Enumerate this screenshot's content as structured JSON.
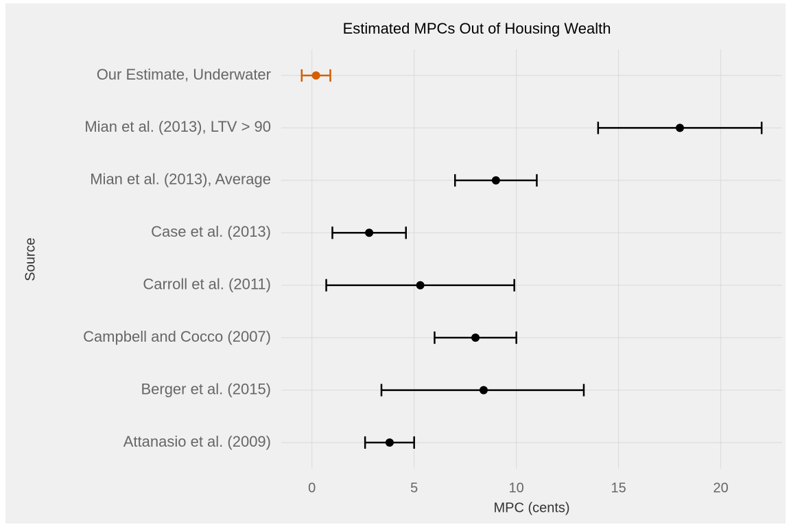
{
  "chart_data": {
    "type": "errorbar",
    "title": "Estimated MPCs Out of Housing Wealth",
    "x_label": "MPC (cents)",
    "y_label": "Source",
    "categories": [
      "Our Estimate, Underwater",
      "Mian et al. (2013), LTV > 90",
      "Mian et al. (2013), Average",
      "Case et al. (2013)",
      "Carroll et al. (2011)",
      "Campbell and Cocco (2007)",
      "Berger et al. (2015)",
      "Attanasio et al. (2009)"
    ],
    "values": [
      0.2,
      18.0,
      9.0,
      2.8,
      5.3,
      8.0,
      8.4,
      3.8
    ],
    "lower": [
      -0.5,
      14.0,
      7.0,
      1.0,
      0.7,
      6.0,
      3.4,
      2.6
    ],
    "upper": [
      0.9,
      22.0,
      11.0,
      4.6,
      9.9,
      10.0,
      13.3,
      5.0
    ],
    "colors": [
      "#d55e00",
      "#000000",
      "#000000",
      "#000000",
      "#000000",
      "#000000",
      "#000000",
      "#000000"
    ],
    "xlim": [
      -1.5,
      23
    ],
    "xticks": [
      0,
      5,
      10,
      15,
      20
    ],
    "grid": true
  }
}
